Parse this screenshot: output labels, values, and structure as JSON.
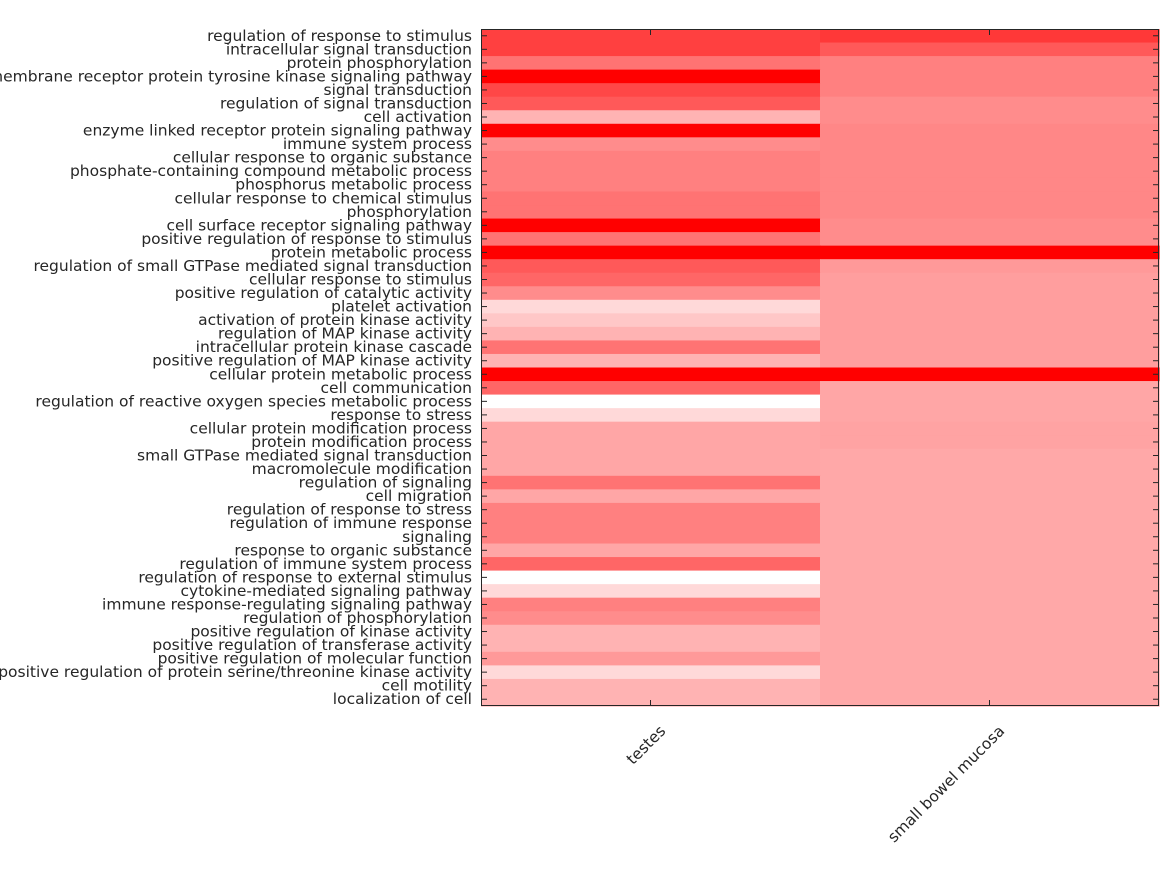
{
  "chart_data": {
    "type": "heatmap",
    "title": "",
    "xlabel": "",
    "ylabel": "",
    "colormap": "white-to-red",
    "colors": {
      "low": "#ffffff",
      "high": "#ff0000",
      "axis": "#262626"
    },
    "value_scale": "0 = white, 1 = pure red",
    "grid": false,
    "columns": [
      "testes",
      "small bowel mucosa"
    ],
    "rows": [
      "regulation of response to stimulus",
      "intracellular signal transduction",
      "protein phosphorylation",
      "transmembrane receptor protein tyrosine kinase signaling pathway",
      "signal transduction",
      "regulation of signal transduction",
      "cell activation",
      "enzyme linked receptor protein signaling pathway",
      "immune system process",
      "cellular response to organic substance",
      "phosphate-containing compound metabolic process",
      "phosphorus metabolic process",
      "cellular response to chemical stimulus",
      "phosphorylation",
      "cell surface receptor signaling pathway",
      "positive regulation of response to stimulus",
      "protein metabolic process",
      "regulation of small GTPase mediated signal transduction",
      "cellular response to stimulus",
      "positive regulation of catalytic activity",
      "platelet activation",
      "activation of protein kinase activity",
      "regulation of MAP kinase activity",
      "intracellular protein kinase cascade",
      "positive regulation of MAP kinase activity",
      "cellular protein metabolic process",
      "cell communication",
      "regulation of reactive oxygen species metabolic process",
      "response to stress",
      "cellular protein modification process",
      "protein modification process",
      "small GTPase mediated signal transduction",
      "macromolecule modification",
      "regulation of signaling",
      "cell migration",
      "regulation of response to stress",
      "regulation of immune response",
      "signaling",
      "response to organic substance",
      "regulation of immune system process",
      "regulation of response to external stimulus",
      "cytokine-mediated signaling pathway",
      "immune response-regulating signaling pathway",
      "regulation of phosphorylation",
      "positive regulation of kinase activity",
      "positive regulation of transferase activity",
      "positive regulation of molecular function",
      "positive regulation of protein serine/threonine kinase activity",
      "cell motility",
      "localization of cell"
    ],
    "values": [
      [
        0.75,
        0.78
      ],
      [
        0.75,
        0.65
      ],
      [
        0.55,
        0.5
      ],
      [
        1.0,
        0.5
      ],
      [
        0.72,
        0.5
      ],
      [
        0.65,
        0.45
      ],
      [
        0.3,
        0.45
      ],
      [
        1.0,
        0.47
      ],
      [
        0.45,
        0.47
      ],
      [
        0.5,
        0.47
      ],
      [
        0.5,
        0.47
      ],
      [
        0.5,
        0.47
      ],
      [
        0.55,
        0.47
      ],
      [
        0.55,
        0.47
      ],
      [
        1.0,
        0.45
      ],
      [
        0.55,
        0.45
      ],
      [
        1.0,
        1.0
      ],
      [
        0.65,
        0.4
      ],
      [
        0.6,
        0.38
      ],
      [
        0.45,
        0.38
      ],
      [
        0.15,
        0.38
      ],
      [
        0.22,
        0.38
      ],
      [
        0.3,
        0.38
      ],
      [
        0.55,
        0.38
      ],
      [
        0.3,
        0.38
      ],
      [
        1.0,
        1.0
      ],
      [
        0.6,
        0.35
      ],
      [
        0.0,
        0.35
      ],
      [
        0.15,
        0.35
      ],
      [
        0.35,
        0.36
      ],
      [
        0.35,
        0.36
      ],
      [
        0.35,
        0.34
      ],
      [
        0.35,
        0.34
      ],
      [
        0.55,
        0.34
      ],
      [
        0.35,
        0.34
      ],
      [
        0.5,
        0.34
      ],
      [
        0.5,
        0.34
      ],
      [
        0.5,
        0.34
      ],
      [
        0.35,
        0.34
      ],
      [
        0.6,
        0.34
      ],
      [
        0.0,
        0.34
      ],
      [
        0.15,
        0.34
      ],
      [
        0.5,
        0.34
      ],
      [
        0.45,
        0.34
      ],
      [
        0.3,
        0.34
      ],
      [
        0.3,
        0.34
      ],
      [
        0.4,
        0.34
      ],
      [
        0.15,
        0.34
      ],
      [
        0.3,
        0.34
      ],
      [
        0.3,
        0.34
      ]
    ]
  }
}
